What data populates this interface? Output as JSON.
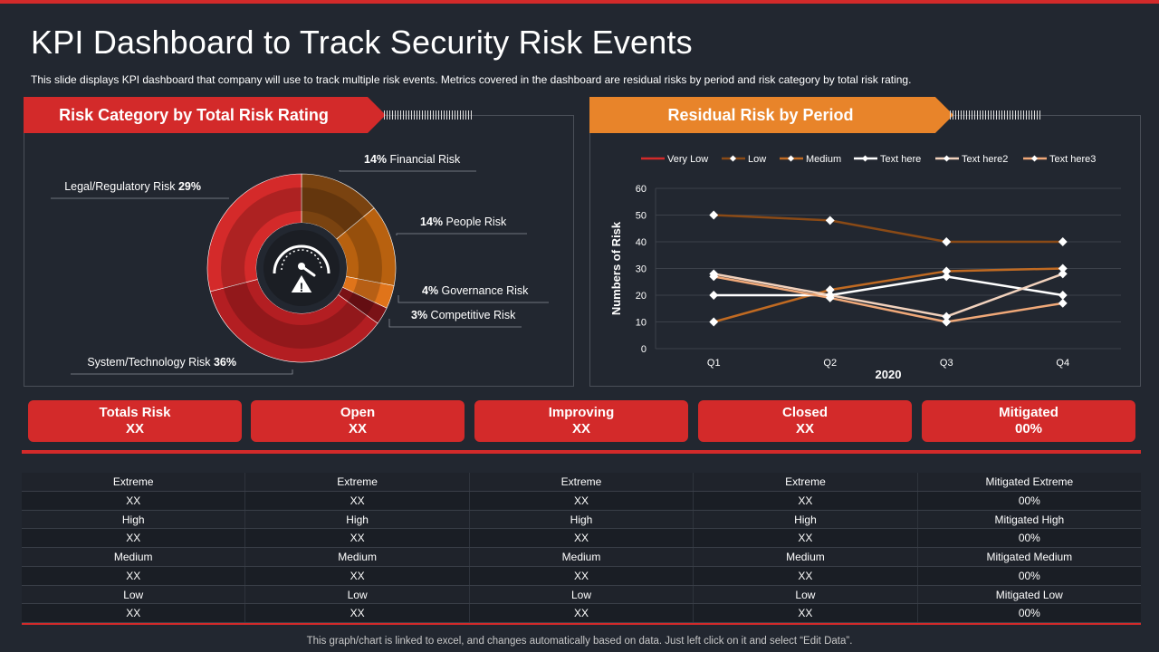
{
  "title": "KPI Dashboard to Track Security Risk Events",
  "subtitle": "This slide displays KPI dashboard  that company  will use to track multiple  risk events.  Metrics covered  in the dashboard  are residual risks by period  and risk category by total risk rating.",
  "left_banner": "Risk Category by Total Risk Rating",
  "right_banner": "Residual Risk by Period",
  "colors": {
    "red": "#d32a2a",
    "orange": "#e8842a"
  },
  "chart_data": [
    {
      "type": "pie",
      "title": "Risk Category by Total Risk Rating",
      "slices": [
        {
          "label": "Financial Risk",
          "pct": "14%",
          "value": 14,
          "color": "#7a4310"
        },
        {
          "label": "People Risk",
          "pct": "14%",
          "value": 14,
          "color": "#b8610f"
        },
        {
          "label": "Governance  Risk",
          "pct": "4%",
          "value": 4,
          "color": "#e0741a"
        },
        {
          "label": "Competitive Risk",
          "pct": "3%",
          "value": 3,
          "color": "#7a1216"
        },
        {
          "label": "System/Technology Risk",
          "pct": "36%",
          "value": 36,
          "color": "#b31e22"
        },
        {
          "label": "Legal/Regulatory  Risk",
          "pct": "29%",
          "value": 29,
          "color": "#d42a2a"
        }
      ],
      "center_icon": "speedometer-warning-icon"
    },
    {
      "type": "line",
      "title": "Residual Risk by Period",
      "categories": [
        "Q1",
        "Q2",
        "Q3",
        "Q4"
      ],
      "xlabel": "2020",
      "ylabel": "Numbers of Risk",
      "ylim": [
        0,
        60
      ],
      "yticks": [
        0,
        10,
        20,
        30,
        40,
        50,
        60
      ],
      "grid": true,
      "legend": "top",
      "series": [
        {
          "name": "Very Low",
          "values": [
            null,
            null,
            null,
            null
          ],
          "color": "#d32a2a"
        },
        {
          "name": "Low",
          "values": [
            50,
            48,
            40,
            40
          ],
          "color": "#8a4a16"
        },
        {
          "name": "Medium",
          "values": [
            10,
            22,
            29,
            30
          ],
          "color": "#c06a22"
        },
        {
          "name": "Text here",
          "values": [
            20,
            20,
            27,
            20
          ],
          "color": "#ffffff"
        },
        {
          "name": "Text here2",
          "values": [
            28,
            20,
            12,
            28
          ],
          "color": "#f2d2bd"
        },
        {
          "name": "Text here3",
          "values": [
            27,
            19,
            10,
            17
          ],
          "color": "#f0a878"
        }
      ]
    }
  ],
  "kpis": [
    {
      "label": "Totals Risk",
      "value": "XX"
    },
    {
      "label": "Open",
      "value": "XX"
    },
    {
      "label": "Improving",
      "value": "XX"
    },
    {
      "label": "Closed",
      "value": "XX"
    },
    {
      "label": "Mitigated",
      "value": "00%"
    }
  ],
  "table": [
    [
      "Extreme",
      "Extreme",
      "Extreme",
      "Extreme",
      "Mitigated Extreme"
    ],
    [
      "XX",
      "XX",
      "XX",
      "XX",
      "00%"
    ],
    [
      "High",
      "High",
      "High",
      "High",
      "Mitigated High"
    ],
    [
      "XX",
      "XX",
      "XX",
      "XX",
      "00%"
    ],
    [
      "Medium",
      "Medium",
      "Medium",
      "Medium",
      "Mitigated Medium"
    ],
    [
      "XX",
      "XX",
      "XX",
      "XX",
      "00%"
    ],
    [
      "Low",
      "Low",
      "Low",
      "Low",
      "Mitigated Low"
    ],
    [
      "XX",
      "XX",
      "XX",
      "XX",
      "00%"
    ]
  ],
  "footer": "This graph/chart is linked to excel,  and changes automatically based on data. Just left click on it and select “Edit Data”."
}
